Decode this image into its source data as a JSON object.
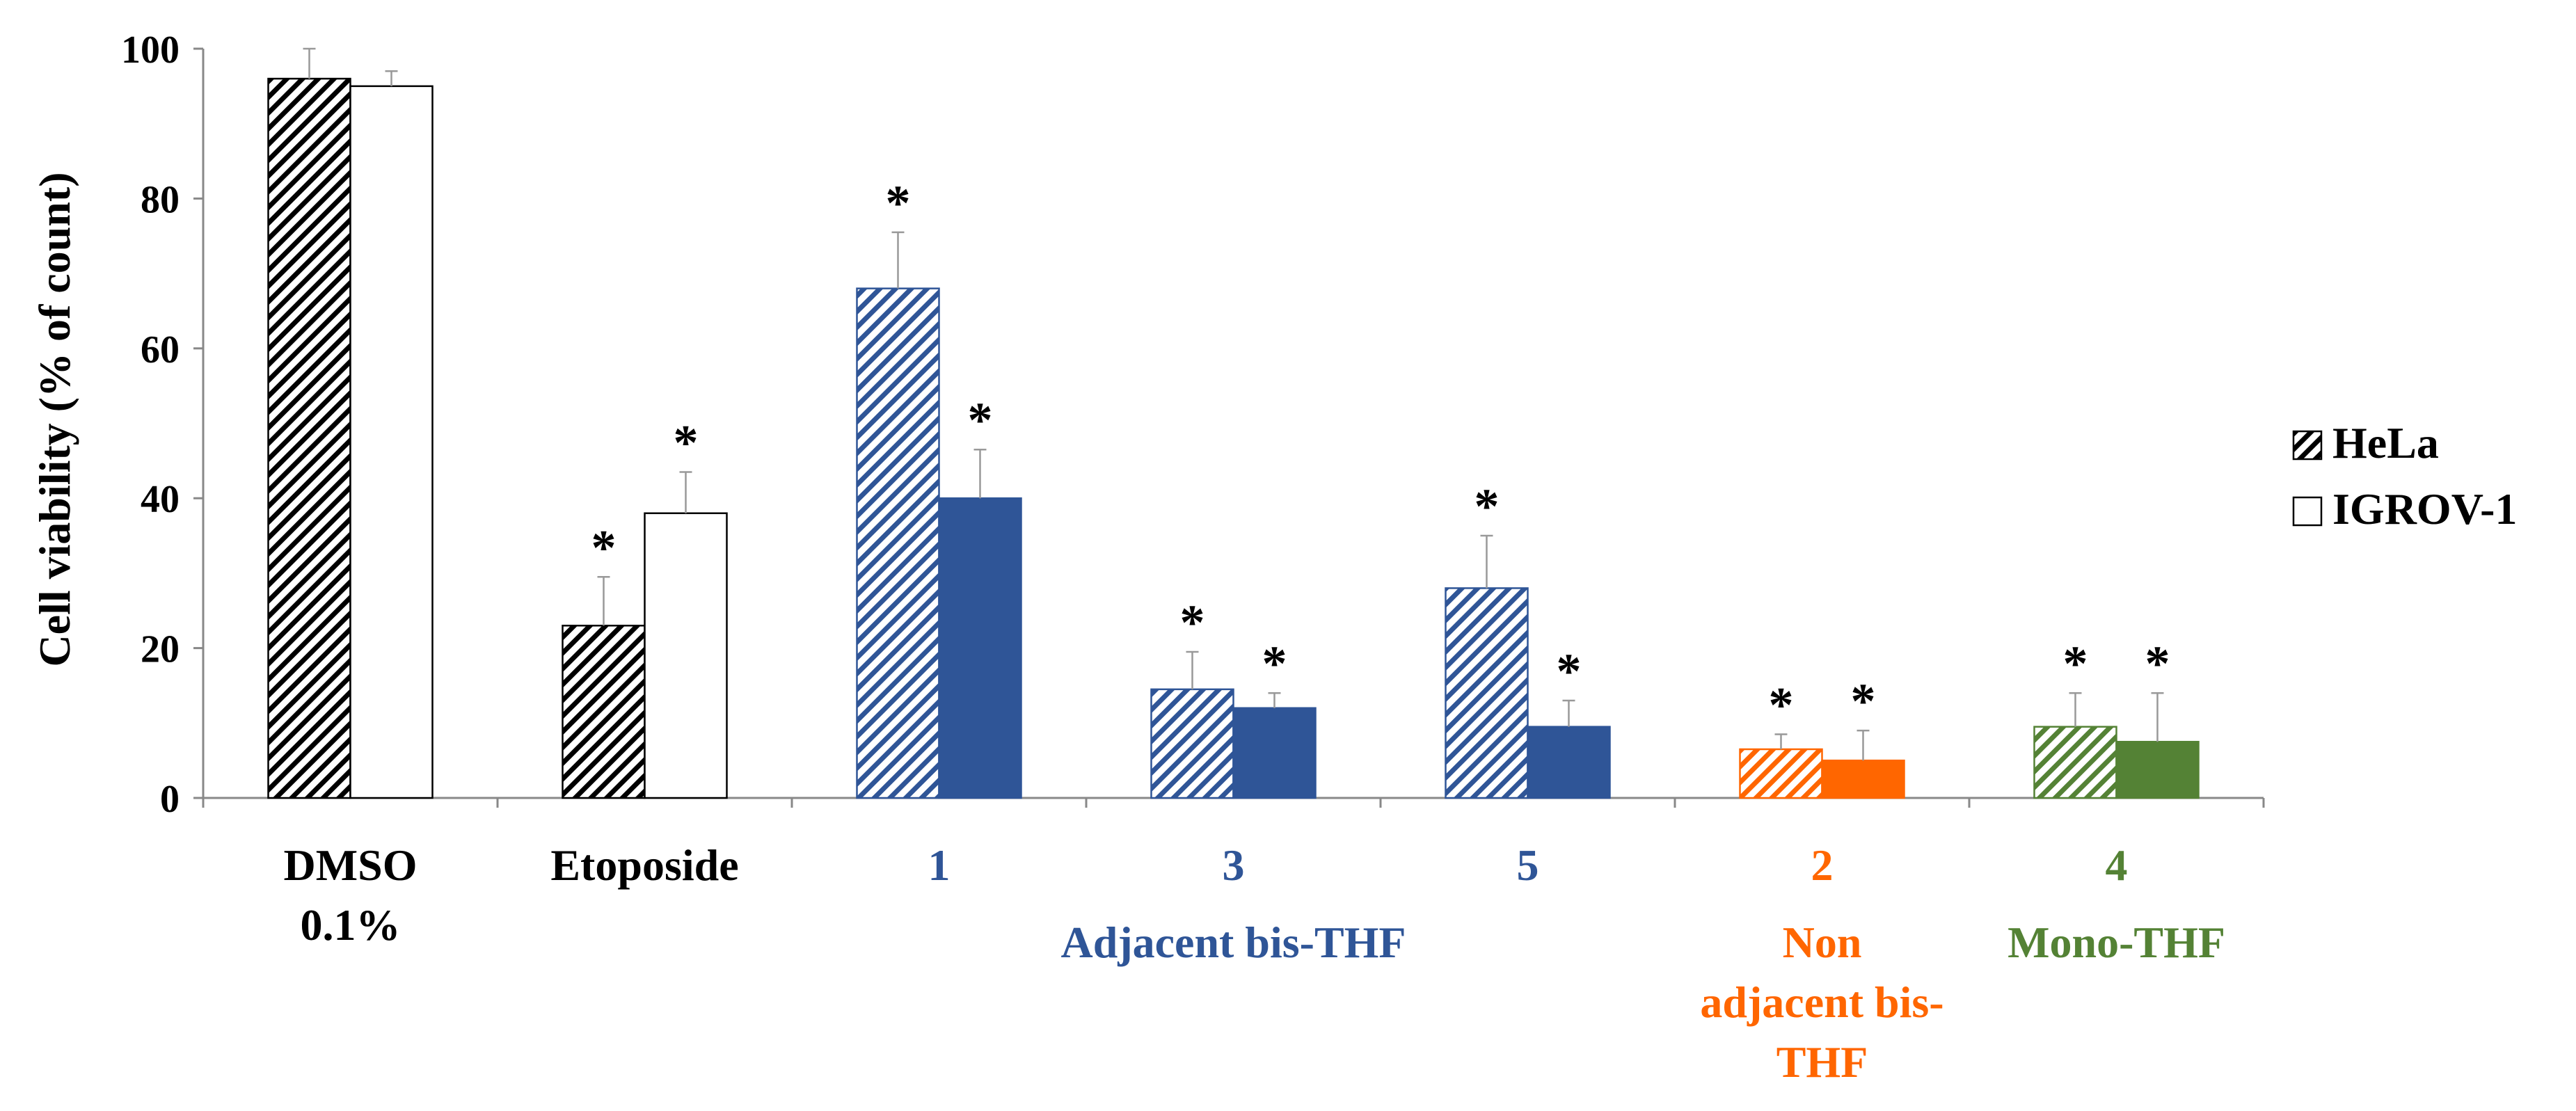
{
  "colors": {
    "black": "#000000",
    "blue": "#2F5597",
    "orange": "#FF6600",
    "green": "#548235",
    "axis": "#888888",
    "errorbar": "#999999"
  },
  "chart_data": {
    "type": "bar",
    "ylabel": "Cell viability (% of count)",
    "ylim": [
      0,
      100
    ],
    "yticks": [
      "0",
      "20",
      "40",
      "60",
      "80",
      "100"
    ],
    "legend": {
      "placement": "right",
      "entries": [
        {
          "name": "HeLa",
          "style": "hatched"
        },
        {
          "name": "IGROV-1",
          "style": "solid"
        }
      ]
    },
    "categories": [
      {
        "label": [
          "DMSO",
          "0.1%"
        ],
        "color_key": "black",
        "hela": 96,
        "hela_err": 4,
        "igrov": 95,
        "igrov_err": 2,
        "hela_sig": "",
        "igrov_sig": ""
      },
      {
        "label": [
          "Etoposide"
        ],
        "color_key": "black",
        "hela": 23,
        "hela_err": 6.5,
        "igrov": 38,
        "igrov_err": 5.5,
        "hela_sig": "*",
        "igrov_sig": "*"
      },
      {
        "label": [
          "1"
        ],
        "color_key": "blue",
        "hela": 68,
        "hela_err": 7.5,
        "igrov": 40,
        "igrov_err": 6.5,
        "hela_sig": "*",
        "igrov_sig": "*"
      },
      {
        "label": [
          "3"
        ],
        "color_key": "blue",
        "hela": 14.5,
        "hela_err": 5,
        "igrov": 12,
        "igrov_err": 2,
        "hela_sig": "*",
        "igrov_sig": "*"
      },
      {
        "label": [
          "5"
        ],
        "color_key": "blue",
        "hela": 28,
        "hela_err": 7,
        "igrov": 9.5,
        "igrov_err": 3.5,
        "hela_sig": "*",
        "igrov_sig": "*"
      },
      {
        "label": [
          "2"
        ],
        "color_key": "orange",
        "hela": 6.5,
        "hela_err": 2,
        "igrov": 5,
        "igrov_err": 4,
        "hela_sig": "*",
        "igrov_sig": "*"
      },
      {
        "label": [
          "4"
        ],
        "color_key": "green",
        "hela": 9.5,
        "hela_err": 4.5,
        "igrov": 7.5,
        "igrov_err": 6.5,
        "hela_sig": "*",
        "igrov_sig": "*"
      }
    ],
    "group_labels": [
      {
        "lines": [
          "Adjacent bis-THF"
        ],
        "color_key": "blue",
        "under": [
          2,
          4
        ]
      },
      {
        "lines": [
          "Non",
          "adjacent bis-",
          "THF"
        ],
        "color_key": "orange",
        "under": [
          5,
          5
        ]
      },
      {
        "lines": [
          "Mono-THF"
        ],
        "color_key": "green",
        "under": [
          6,
          6
        ]
      }
    ],
    "grid": false
  }
}
